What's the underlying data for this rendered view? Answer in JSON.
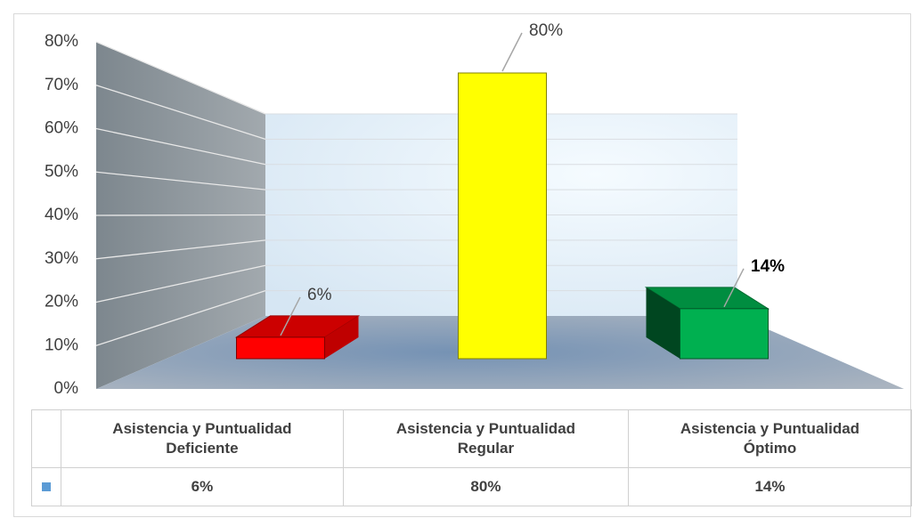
{
  "chart_data": {
    "type": "bar3d",
    "categories": [
      "Asistencia y Puntualidad Deficiente",
      "Asistencia y Puntualidad Regular",
      "Asistencia y Puntualidad Óptimo"
    ],
    "values": [
      6,
      80,
      14
    ],
    "value_labels": [
      "6%",
      "80%",
      "14%"
    ],
    "colors": [
      "#ff0000",
      "#ffff00",
      "#00b050"
    ],
    "ylim": [
      0,
      80
    ],
    "yticks": [
      {
        "value": 0,
        "label": "0%"
      },
      {
        "value": 10,
        "label": "10%"
      },
      {
        "value": 20,
        "label": "20%"
      },
      {
        "value": 30,
        "label": "30%"
      },
      {
        "value": 40,
        "label": "40%"
      },
      {
        "value": 50,
        "label": "50%"
      },
      {
        "value": 60,
        "label": "60%"
      },
      {
        "value": 70,
        "label": "70%"
      },
      {
        "value": 80,
        "label": "80%"
      }
    ],
    "grid": true,
    "legend_color": "#5b9bd5"
  }
}
